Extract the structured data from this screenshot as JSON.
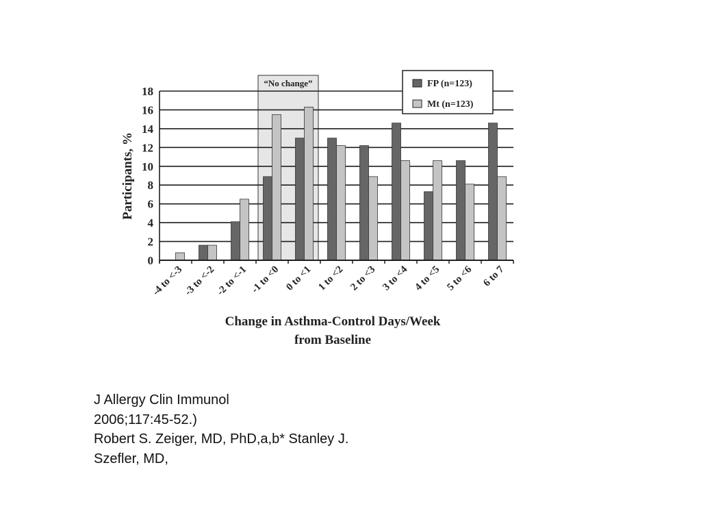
{
  "chart_data": {
    "type": "bar",
    "title": "",
    "xlabel": [
      "Change in Asthma-Control Days/Week",
      "from Baseline"
    ],
    "ylabel": "Participants, %",
    "ylim": [
      0,
      18
    ],
    "yticks": [
      "0",
      "2",
      "4",
      "6",
      "8",
      "10",
      "12",
      "14",
      "16",
      "18"
    ],
    "grid": true,
    "legend_position": "top-right",
    "categories": [
      "-4 to <-3",
      "-3 to <-2",
      "-2 to <-1",
      "-1 to <0",
      "0 to <1",
      "1 to <2",
      "2 to <3",
      "3 to <4",
      "4 to <5",
      "5 to <6",
      "6 to 7"
    ],
    "series": [
      {
        "name": "FP (n=123)",
        "color": "#666666",
        "values": [
          0,
          1.6,
          4.1,
          8.9,
          13.0,
          13.0,
          12.2,
          14.6,
          7.3,
          10.6,
          14.6
        ]
      },
      {
        "name": "Mt (n=123)",
        "color": "#c4c4c4",
        "values": [
          0.8,
          1.6,
          6.5,
          15.5,
          16.3,
          12.2,
          8.9,
          10.6,
          10.6,
          8.1,
          8.9
        ]
      }
    ],
    "annotation": {
      "label": "“No change”",
      "categories": [
        "-1 to <0",
        "0 to <1"
      ]
    }
  },
  "citation": {
    "lines": [
      "J Allergy Clin Immunol",
      "2006;117:45-52.)",
      "Robert S. Zeiger, MD, PhD,a,b* Stanley J.",
      "Szefler, MD,"
    ]
  }
}
